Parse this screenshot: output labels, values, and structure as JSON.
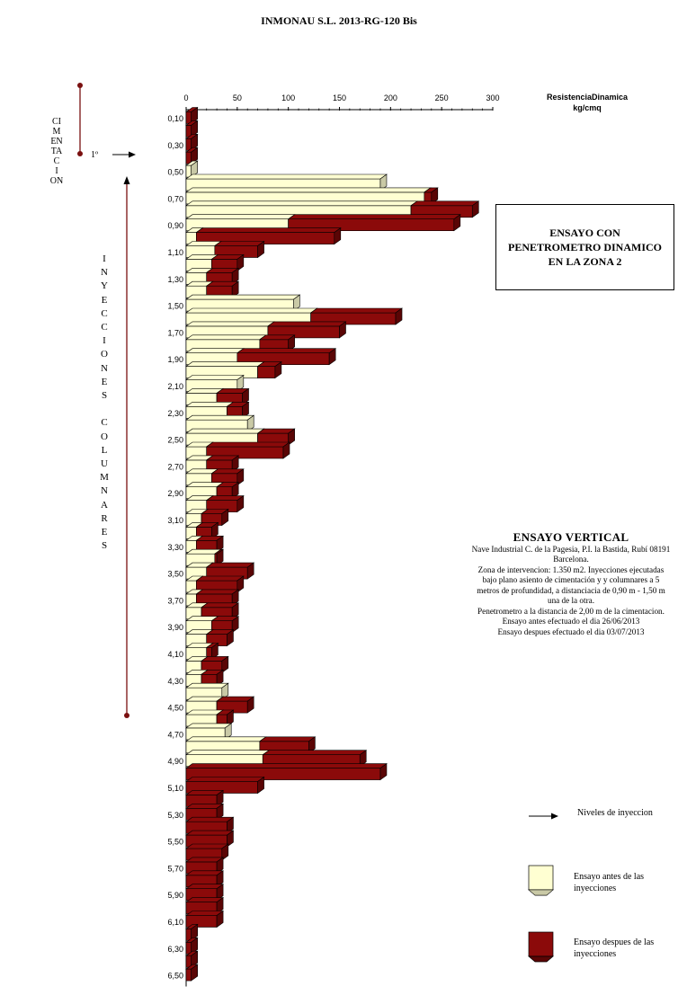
{
  "page": {
    "title": "INMONAU S.L.  2013-RG-120 Bis",
    "axis_title_line1": "ResistenciaDinamica",
    "axis_title_line2": "kg/cmq",
    "side_label_cimentacion": [
      "CI",
      "M",
      "EN",
      "TA",
      "C",
      "I",
      "ON"
    ],
    "side_label_inyecciones": [
      "I",
      "N",
      "Y",
      "E",
      "C",
      "C",
      "I",
      "O",
      "N",
      "E",
      "S",
      "",
      "C",
      "O",
      "L",
      "U",
      "M",
      "N",
      "A",
      "R",
      "E",
      "S"
    ],
    "first_level_label": "1º",
    "box_title": "ENSAYO CON PENETROMETRO DINAMICO EN LA ZONA 2",
    "info": {
      "heading": "ENSAYO VERTICAL",
      "lines": [
        "Nave Industrial C. de la Pagesia, P.I.  la Bastida, Rubí 08191",
        "Barcelona.",
        "Zona de intervencion: 1.350 m2. Inyecciones ejecutadas",
        "bajo plano  asiento de cimentación y  y columnares a 5",
        "metros de profundidad, a distanciacia de 0,90 m - 1,50 m",
        "una de la otra.",
        "Penetrometro  a la distancia de 2,00 m de la cimentacion.",
        "Ensayo antes efectuado el dia 26/06/2013",
        "Ensayo despues efectuado el dia 03/07/2013"
      ]
    },
    "legend": {
      "arrow_label": "Niveles de inyeccion",
      "before_label_1": "Ensayo antes de las",
      "before_label_2": "inyecciones",
      "after_label_1": "Ensayo despues de las",
      "after_label_2": "inyecciones"
    },
    "colors": {
      "before": "#ffffd2",
      "before_side": "#c9c9a6",
      "after": "#8b0a0a",
      "after_side": "#5a0505",
      "marker": "#7a1010"
    }
  },
  "chart_data": {
    "type": "bar",
    "orientation": "horizontal",
    "xlim": [
      0,
      300
    ],
    "xticks": [
      0,
      50,
      100,
      150,
      200,
      250,
      300
    ],
    "depth_tick_labels": [
      "0,10",
      "0,30",
      "0,50",
      "0,70",
      "0,90",
      "1,10",
      "1,30",
      "1,50",
      "1,70",
      "1,90",
      "2,10",
      "2,30",
      "2,50",
      "2,70",
      "2,90",
      "3,10",
      "3,30",
      "3,50",
      "3,70",
      "3,90",
      "4,10",
      "4,30",
      "4,50",
      "4,70",
      "4,90",
      "5,10",
      "5,30",
      "5,50",
      "5,70",
      "5,90",
      "6,10",
      "6,30",
      "6,50"
    ],
    "depths": [
      0.1,
      0.2,
      0.3,
      0.4,
      0.5,
      0.6,
      0.7,
      0.8,
      0.9,
      1.0,
      1.1,
      1.2,
      1.3,
      1.4,
      1.5,
      1.6,
      1.7,
      1.8,
      1.9,
      2.0,
      2.1,
      2.2,
      2.3,
      2.4,
      2.5,
      2.6,
      2.7,
      2.8,
      2.9,
      3.0,
      3.1,
      3.2,
      3.3,
      3.4,
      3.5,
      3.6,
      3.7,
      3.8,
      3.9,
      4.0,
      4.1,
      4.2,
      4.3,
      4.4,
      4.5,
      4.6,
      4.7,
      4.8,
      4.9,
      5.0,
      5.1,
      5.2,
      5.3,
      5.4,
      5.5,
      5.6,
      5.7,
      5.8,
      5.9,
      6.0,
      6.1,
      6.2,
      6.3,
      6.4,
      6.5
    ],
    "series": [
      {
        "name": "Ensayo antes de las inyecciones",
        "values": [
          0,
          0,
          0,
          0,
          5,
          190,
          233,
          220,
          100,
          10,
          28,
          25,
          20,
          20,
          105,
          122,
          80,
          72,
          50,
          70,
          50,
          30,
          40,
          60,
          70,
          20,
          20,
          25,
          30,
          20,
          15,
          10,
          10,
          28,
          20,
          10,
          10,
          15,
          25,
          20,
          20,
          15,
          15,
          35,
          30,
          30,
          38,
          72,
          75,
          0,
          0,
          0,
          0,
          0,
          0,
          0,
          0,
          0,
          0,
          0,
          0,
          0,
          0,
          0,
          0
        ]
      },
      {
        "name": "Ensayo despues de las inyecciones",
        "values": [
          5,
          5,
          5,
          5,
          0,
          0,
          240,
          280,
          262,
          145,
          70,
          50,
          45,
          45,
          0,
          205,
          150,
          100,
          140,
          87,
          0,
          55,
          55,
          0,
          100,
          95,
          45,
          50,
          45,
          50,
          35,
          25,
          30,
          30,
          60,
          50,
          45,
          45,
          45,
          40,
          25,
          35,
          30,
          0,
          60,
          40,
          0,
          120,
          170,
          190,
          70,
          30,
          30,
          40,
          40,
          35,
          30,
          30,
          30,
          30,
          30,
          5,
          5,
          5,
          5
        ]
      }
    ]
  }
}
